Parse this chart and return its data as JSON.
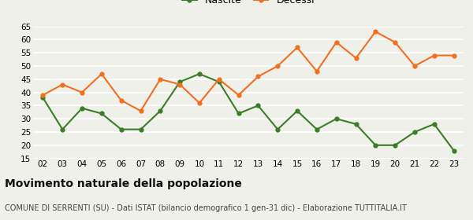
{
  "years": [
    "02",
    "03",
    "04",
    "05",
    "06",
    "07",
    "08",
    "09",
    "10",
    "11",
    "12",
    "13",
    "14",
    "15",
    "16",
    "17",
    "18",
    "19",
    "20",
    "21",
    "22",
    "23"
  ],
  "nascite": [
    38,
    26,
    34,
    32,
    26,
    26,
    33,
    44,
    47,
    44,
    32,
    35,
    26,
    33,
    26,
    30,
    28,
    20,
    20,
    25,
    28,
    18
  ],
  "decessi": [
    39,
    43,
    40,
    47,
    37,
    33,
    45,
    43,
    36,
    45,
    39,
    46,
    50,
    57,
    48,
    59,
    53,
    63,
    59,
    50,
    54,
    54
  ],
  "nascite_color": "#3a7d27",
  "decessi_color": "#f07020",
  "background_color": "#f0f0eb",
  "grid_color": "#ffffff",
  "ylim": [
    15,
    65
  ],
  "yticks": [
    15,
    20,
    25,
    30,
    35,
    40,
    45,
    50,
    55,
    60,
    65
  ],
  "title": "Movimento naturale della popolazione",
  "subtitle": "COMUNE DI SERRENTI (SU) - Dati ISTAT (bilancio demografico 1 gen-31 dic) - Elaborazione TUTTITALIA.IT",
  "legend_nascite": "Nascite",
  "legend_decessi": "Decessi",
  "title_fontsize": 10,
  "subtitle_fontsize": 7,
  "legend_fontsize": 9,
  "tick_fontsize": 7.5,
  "line_width": 1.5,
  "marker_size": 3.5
}
